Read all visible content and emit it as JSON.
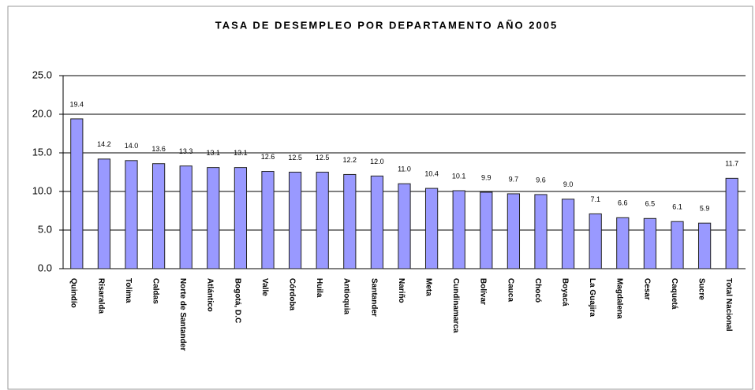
{
  "chart_data": {
    "type": "bar",
    "title": "TASA DE DESEMPLEO POR DEPARTAMENTO AÑO 2005",
    "categories": [
      "Quindío",
      "Risaralda",
      "Tolima",
      "Caldas",
      "Norte de Santander",
      "Atlántico",
      "Bogotá, D.C",
      "Valle",
      "Córdoba",
      "Huila",
      "Antioquia",
      "Santander",
      "Nariño",
      "Meta",
      "Cundinamarca",
      "Bolívar",
      "Cauca",
      "Chocó",
      "Boyacá",
      "La Guajira",
      "Magdalena",
      "Cesar",
      "Caquetá",
      "Sucre",
      "Total Nacional"
    ],
    "values": [
      19.4,
      14.2,
      14.0,
      13.6,
      13.3,
      13.1,
      13.1,
      12.6,
      12.5,
      12.5,
      12.2,
      12.0,
      11.0,
      10.4,
      10.1,
      9.9,
      9.7,
      9.6,
      9.0,
      7.1,
      6.6,
      6.5,
      6.1,
      5.9,
      11.7
    ],
    "value_labels": [
      "19.4",
      "14.2",
      "14.0",
      "13.6",
      "13.3",
      "13.1",
      "13.1",
      "12.6",
      "12.5",
      "12.5",
      "12.2",
      "12.0",
      "11.0",
      "10.4",
      "10.1",
      "9.9",
      "9.7",
      "9.6",
      "9.0",
      "7.1",
      "6.6",
      "6.5",
      "6.1",
      "5.9",
      "11.7"
    ],
    "color": "#9999ff",
    "ylim": [
      0,
      25
    ],
    "yticks": [
      {
        "value": 0,
        "label": "0.0"
      },
      {
        "value": 5,
        "label": "5.0"
      },
      {
        "value": 10,
        "label": "10.0"
      },
      {
        "value": 15,
        "label": "15.0"
      },
      {
        "value": 20,
        "label": "20.0"
      },
      {
        "value": 25,
        "label": "25.0"
      }
    ],
    "grid": true
  }
}
